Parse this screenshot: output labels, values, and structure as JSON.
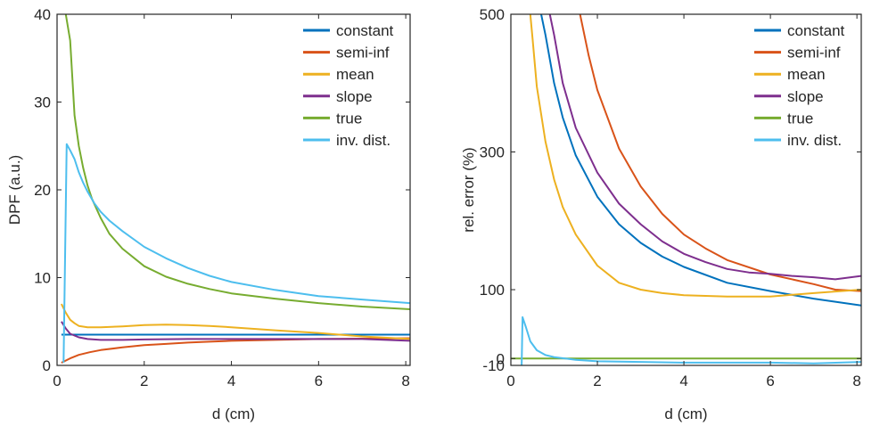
{
  "chart_data": [
    {
      "type": "line",
      "xlabel": "d (cm)",
      "ylabel": "DPF (a.u.)",
      "xlim": [
        0,
        8.1
      ],
      "ylim": [
        0,
        40
      ],
      "xticks": [
        0,
        2,
        4,
        6,
        8
      ],
      "yticks": [
        0,
        10,
        20,
        30,
        40
      ],
      "xtick_labels": [
        "0",
        "2",
        "4",
        "6",
        "8"
      ],
      "ytick_labels": [
        "0",
        "10",
        "20",
        "30",
        "40"
      ],
      "grid": false,
      "legend_position": "top-right",
      "series": [
        {
          "name": "constant",
          "color": "#0072BD",
          "x": [
            0.1,
            0.5,
            1,
            2,
            3,
            4,
            5,
            6,
            7,
            8.1
          ],
          "y": [
            3.5,
            3.5,
            3.5,
            3.5,
            3.5,
            3.5,
            3.5,
            3.5,
            3.5,
            3.5
          ]
        },
        {
          "name": "semi-inf",
          "color": "#D95319",
          "x": [
            0.1,
            0.3,
            0.5,
            0.75,
            1,
            1.5,
            2,
            2.5,
            3,
            3.5,
            4,
            5,
            6,
            7,
            8.1
          ],
          "y": [
            0.3,
            0.8,
            1.2,
            1.5,
            1.75,
            2.05,
            2.3,
            2.45,
            2.6,
            2.7,
            2.8,
            2.9,
            3.0,
            3.05,
            3.1
          ]
        },
        {
          "name": "mean",
          "color": "#EDB120",
          "x": [
            0.1,
            0.2,
            0.3,
            0.4,
            0.5,
            0.7,
            1,
            1.5,
            2,
            2.5,
            3,
            3.5,
            4,
            5,
            6,
            7,
            8.1
          ],
          "y": [
            7.0,
            6.0,
            5.2,
            4.8,
            4.5,
            4.35,
            4.35,
            4.45,
            4.6,
            4.65,
            4.6,
            4.5,
            4.35,
            4.0,
            3.7,
            3.3,
            3.0
          ]
        },
        {
          "name": "slope",
          "color": "#7E2F8E",
          "x": [
            0.1,
            0.2,
            0.3,
            0.5,
            0.7,
            1,
            1.5,
            2,
            3,
            4,
            5,
            6,
            7,
            8.1
          ],
          "y": [
            5.0,
            4.2,
            3.6,
            3.2,
            3.0,
            2.9,
            2.9,
            2.95,
            3.0,
            3.0,
            3.0,
            3.0,
            3.0,
            2.8
          ]
        },
        {
          "name": "true",
          "color": "#77AC30",
          "x": [
            0.2,
            0.3,
            0.4,
            0.5,
            0.6,
            0.7,
            0.8,
            1.0,
            1.2,
            1.5,
            2,
            2.5,
            3,
            3.5,
            4,
            5,
            6,
            7,
            8.1
          ],
          "y": [
            40.0,
            37.0,
            28.5,
            25.0,
            22.5,
            20.5,
            19.0,
            16.8,
            15.0,
            13.3,
            11.3,
            10.1,
            9.3,
            8.7,
            8.2,
            7.6,
            7.1,
            6.7,
            6.4
          ]
        },
        {
          "name": "inv. dist.",
          "color": "#4DBEEE",
          "x": [
            0.15,
            0.22,
            0.3,
            0.4,
            0.5,
            0.6,
            0.7,
            0.85,
            1.0,
            1.2,
            1.5,
            2,
            2.5,
            3,
            3.5,
            4,
            5,
            6,
            7,
            8.1
          ],
          "y": [
            0.3,
            25.2,
            24.5,
            23.5,
            22.0,
            20.8,
            19.8,
            18.5,
            17.5,
            16.5,
            15.3,
            13.5,
            12.2,
            11.1,
            10.2,
            9.5,
            8.6,
            7.9,
            7.5,
            7.1
          ]
        }
      ]
    },
    {
      "type": "line",
      "xlabel": "d (cm)",
      "ylabel": "rel. error (%)",
      "xlim": [
        0,
        8.1
      ],
      "ylim": [
        -10,
        500
      ],
      "xticks": [
        0,
        2,
        4,
        6,
        8
      ],
      "yticks": [
        -10,
        0,
        100,
        300,
        500
      ],
      "xtick_labels": [
        "0",
        "2",
        "4",
        "6",
        "8"
      ],
      "ytick_labels": [
        "-10",
        "0",
        "100",
        "300",
        "500"
      ],
      "grid": false,
      "legend_position": "top-right",
      "series": [
        {
          "name": "constant",
          "color": "#0072BD",
          "x": [
            0.7,
            0.8,
            1.0,
            1.2,
            1.5,
            2,
            2.5,
            3,
            3.5,
            4,
            5,
            6,
            7,
            8.1
          ],
          "y": [
            500,
            470,
            400,
            350,
            295,
            235,
            195,
            168,
            148,
            133,
            110,
            98,
            87,
            77
          ]
        },
        {
          "name": "semi-inf",
          "color": "#D95319",
          "x": [
            1.6,
            1.8,
            2.0,
            2.5,
            3,
            3.5,
            4,
            4.5,
            5,
            6,
            7,
            7.5,
            8.1
          ],
          "y": [
            500,
            440,
            390,
            305,
            250,
            210,
            180,
            160,
            143,
            122,
            108,
            100,
            98
          ]
        },
        {
          "name": "mean",
          "color": "#EDB120",
          "x": [
            0.45,
            0.5,
            0.6,
            0.8,
            1.0,
            1.2,
            1.5,
            2,
            2.5,
            3,
            3.5,
            4,
            5,
            6,
            7,
            8.1
          ],
          "y": [
            500,
            465,
            395,
            315,
            260,
            220,
            180,
            135,
            110,
            100,
            95,
            92,
            90,
            90,
            95,
            100
          ]
        },
        {
          "name": "slope",
          "color": "#7E2F8E",
          "x": [
            0.9,
            1.0,
            1.2,
            1.5,
            2,
            2.5,
            3,
            3.5,
            4,
            4.5,
            5,
            5.5,
            6,
            6.5,
            7,
            7.5,
            8.1
          ],
          "y": [
            500,
            470,
            400,
            335,
            270,
            225,
            195,
            170,
            152,
            140,
            130,
            125,
            123,
            120,
            118,
            115,
            120
          ]
        },
        {
          "name": "true",
          "color": "#77AC30",
          "x": [
            0.0,
            8.1
          ],
          "y": [
            0,
            0
          ]
        },
        {
          "name": "inv. dist.",
          "color": "#4DBEEE",
          "x": [
            0.25,
            0.27,
            0.35,
            0.45,
            0.6,
            0.8,
            1.0,
            1.5,
            2,
            3,
            4,
            5,
            6,
            7,
            8.1
          ],
          "y": [
            -10,
            60,
            45,
            25,
            12,
            5,
            2,
            -2,
            -4,
            -5,
            -6,
            -6,
            -6,
            -7,
            -5
          ]
        }
      ]
    }
  ]
}
